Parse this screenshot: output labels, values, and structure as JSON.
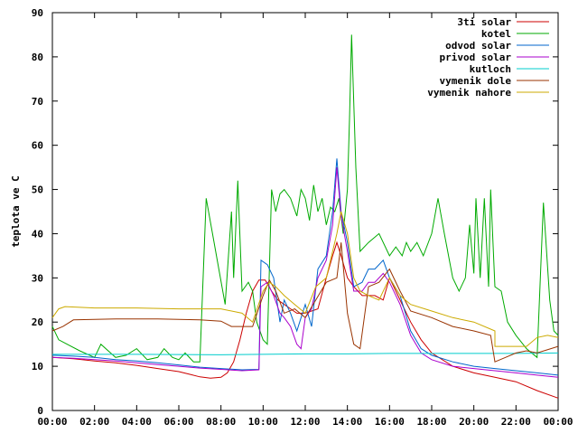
{
  "chart_data": {
    "type": "line",
    "title": "",
    "xlabel": "",
    "ylabel": "teplota ve C",
    "xlim": [
      0,
      24
    ],
    "ylim": [
      0,
      90
    ],
    "grid": false,
    "legend_position": "top-right",
    "x_ticks": [
      "00:00",
      "02:00",
      "04:00",
      "06:00",
      "08:00",
      "10:00",
      "12:00",
      "14:00",
      "16:00",
      "18:00",
      "20:00",
      "22:00",
      "00:00"
    ],
    "y_ticks": [
      "0",
      "10",
      "20",
      "30",
      "40",
      "50",
      "60",
      "70",
      "80",
      "90"
    ],
    "series": [
      {
        "name": "3ti solar",
        "color": "#cc0000",
        "points": [
          [
            0,
            12
          ],
          [
            1,
            11.7
          ],
          [
            2,
            11.2
          ],
          [
            3,
            10.8
          ],
          [
            4,
            10.2
          ],
          [
            5,
            9.5
          ],
          [
            6,
            8.8
          ],
          [
            6.5,
            8.2
          ],
          [
            7,
            7.6
          ],
          [
            7.5,
            7.3
          ],
          [
            8,
            7.5
          ],
          [
            8.3,
            8.5
          ],
          [
            8.6,
            11
          ],
          [
            8.9,
            16
          ],
          [
            9.2,
            22
          ],
          [
            9.5,
            27
          ],
          [
            9.8,
            29.5
          ],
          [
            10.1,
            29.5
          ],
          [
            10.4,
            27
          ],
          [
            10.7,
            25
          ],
          [
            11,
            24
          ],
          [
            11.3,
            23
          ],
          [
            11.6,
            22
          ],
          [
            12,
            22
          ],
          [
            12.3,
            22.5
          ],
          [
            12.6,
            23
          ],
          [
            13,
            30
          ],
          [
            13.3,
            35
          ],
          [
            13.5,
            38
          ],
          [
            13.7,
            35
          ],
          [
            14,
            30
          ],
          [
            14.3,
            28
          ],
          [
            14.7,
            26
          ],
          [
            15,
            26
          ],
          [
            15.3,
            26
          ],
          [
            15.7,
            25
          ],
          [
            16,
            30
          ],
          [
            16.3,
            27
          ],
          [
            16.7,
            23
          ],
          [
            17,
            20
          ],
          [
            17.5,
            16
          ],
          [
            18,
            13
          ],
          [
            19,
            10
          ],
          [
            20,
            8.5
          ],
          [
            21,
            7.5
          ],
          [
            22,
            6.5
          ],
          [
            23,
            4.5
          ],
          [
            24,
            2.8
          ]
        ]
      },
      {
        "name": "kotel",
        "color": "#00aa00",
        "points": [
          [
            0,
            19
          ],
          [
            0.3,
            16
          ],
          [
            0.7,
            15
          ],
          [
            1.3,
            13.5
          ],
          [
            2,
            12
          ],
          [
            2.3,
            15
          ],
          [
            3,
            12
          ],
          [
            3.5,
            12.5
          ],
          [
            4,
            14
          ],
          [
            4.5,
            11.5
          ],
          [
            5,
            12
          ],
          [
            5.3,
            14
          ],
          [
            5.7,
            12
          ],
          [
            6,
            11.5
          ],
          [
            6.3,
            13
          ],
          [
            6.7,
            11
          ],
          [
            7,
            11
          ],
          [
            7.3,
            48
          ],
          [
            7.6,
            40
          ],
          [
            7.9,
            32
          ],
          [
            8.2,
            24
          ],
          [
            8.5,
            45
          ],
          [
            8.6,
            30
          ],
          [
            8.8,
            52
          ],
          [
            9,
            27
          ],
          [
            9.3,
            29
          ],
          [
            9.5,
            27
          ],
          [
            9.7,
            20
          ],
          [
            10,
            16
          ],
          [
            10.2,
            15
          ],
          [
            10.4,
            50
          ],
          [
            10.6,
            45
          ],
          [
            10.8,
            49
          ],
          [
            11,
            50
          ],
          [
            11.3,
            48
          ],
          [
            11.6,
            44
          ],
          [
            11.8,
            50
          ],
          [
            12,
            48
          ],
          [
            12.2,
            43
          ],
          [
            12.4,
            51
          ],
          [
            12.6,
            45
          ],
          [
            12.8,
            48
          ],
          [
            13,
            42
          ],
          [
            13.2,
            46
          ],
          [
            13.4,
            45
          ],
          [
            13.6,
            48
          ],
          [
            13.8,
            40
          ],
          [
            14,
            50
          ],
          [
            14.1,
            66
          ],
          [
            14.2,
            85
          ],
          [
            14.4,
            55
          ],
          [
            14.6,
            36
          ],
          [
            15,
            38
          ],
          [
            15.5,
            40
          ],
          [
            16,
            35
          ],
          [
            16.3,
            37
          ],
          [
            16.6,
            35
          ],
          [
            16.8,
            38
          ],
          [
            17,
            36
          ],
          [
            17.3,
            38
          ],
          [
            17.6,
            35
          ],
          [
            18,
            40
          ],
          [
            18.3,
            48
          ],
          [
            18.6,
            40
          ],
          [
            19,
            30
          ],
          [
            19.3,
            27
          ],
          [
            19.6,
            30
          ],
          [
            19.8,
            42
          ],
          [
            20,
            31
          ],
          [
            20.1,
            48
          ],
          [
            20.3,
            30
          ],
          [
            20.5,
            48
          ],
          [
            20.7,
            28
          ],
          [
            20.8,
            50
          ],
          [
            21,
            28
          ],
          [
            21.3,
            27
          ],
          [
            21.6,
            20
          ],
          [
            22,
            17
          ],
          [
            22.5,
            14
          ],
          [
            23,
            12
          ],
          [
            23.3,
            47
          ],
          [
            23.6,
            25
          ],
          [
            23.8,
            18
          ],
          [
            24,
            17
          ]
        ]
      },
      {
        "name": "odvod solar",
        "color": "#0066cc",
        "points": [
          [
            0,
            12.5
          ],
          [
            1,
            12.3
          ],
          [
            2,
            12
          ],
          [
            3,
            11.5
          ],
          [
            4,
            11.2
          ],
          [
            5,
            10.8
          ],
          [
            6,
            10.3
          ],
          [
            7,
            9.8
          ],
          [
            8,
            9.5
          ],
          [
            9,
            9.2
          ],
          [
            9.8,
            9.3
          ],
          [
            9.9,
            34
          ],
          [
            10.2,
            33
          ],
          [
            10.5,
            30
          ],
          [
            10.8,
            20
          ],
          [
            11,
            25
          ],
          [
            11.3,
            22
          ],
          [
            11.6,
            18
          ],
          [
            12,
            24
          ],
          [
            12.3,
            19
          ],
          [
            12.6,
            32
          ],
          [
            13,
            35
          ],
          [
            13.3,
            45
          ],
          [
            13.5,
            57
          ],
          [
            13.7,
            45
          ],
          [
            14,
            38
          ],
          [
            14.3,
            28
          ],
          [
            14.7,
            29
          ],
          [
            15,
            32
          ],
          [
            15.3,
            32
          ],
          [
            15.7,
            34
          ],
          [
            16,
            30
          ],
          [
            16.5,
            26
          ],
          [
            17,
            18
          ],
          [
            17.5,
            14
          ],
          [
            18,
            12.5
          ],
          [
            19,
            11
          ],
          [
            20,
            10
          ],
          [
            21,
            9.5
          ],
          [
            22,
            9
          ],
          [
            23,
            8.5
          ],
          [
            24,
            8
          ]
        ]
      },
      {
        "name": "privod solar",
        "color": "#aa00cc",
        "points": [
          [
            0,
            12
          ],
          [
            1,
            11.8
          ],
          [
            2,
            11.5
          ],
          [
            3,
            11.2
          ],
          [
            4,
            10.8
          ],
          [
            5,
            10.4
          ],
          [
            6,
            10
          ],
          [
            7,
            9.6
          ],
          [
            8,
            9.3
          ],
          [
            9,
            9
          ],
          [
            9.8,
            9.2
          ],
          [
            9.9,
            28
          ],
          [
            10.2,
            29
          ],
          [
            10.5,
            26
          ],
          [
            10.8,
            22
          ],
          [
            11,
            21
          ],
          [
            11.3,
            19
          ],
          [
            11.6,
            15
          ],
          [
            11.8,
            14
          ],
          [
            12,
            21
          ],
          [
            12.3,
            23
          ],
          [
            12.6,
            30
          ],
          [
            13,
            34
          ],
          [
            13.3,
            42
          ],
          [
            13.5,
            55
          ],
          [
            13.7,
            44
          ],
          [
            14,
            36
          ],
          [
            14.3,
            27
          ],
          [
            14.7,
            27
          ],
          [
            15,
            29
          ],
          [
            15.3,
            29
          ],
          [
            15.7,
            31
          ],
          [
            16,
            29
          ],
          [
            16.5,
            24
          ],
          [
            17,
            17
          ],
          [
            17.5,
            13
          ],
          [
            18,
            11.5
          ],
          [
            19,
            10
          ],
          [
            20,
            9.5
          ],
          [
            21,
            9
          ],
          [
            22,
            8.5
          ],
          [
            23,
            8
          ],
          [
            24,
            7.5
          ]
        ]
      },
      {
        "name": "kutloch",
        "color": "#00cccc",
        "points": [
          [
            0,
            12.7
          ],
          [
            4,
            12.7
          ],
          [
            8,
            12.6
          ],
          [
            10,
            12.7
          ],
          [
            12,
            12.8
          ],
          [
            14,
            12.8
          ],
          [
            16,
            12.9
          ],
          [
            18,
            12.9
          ],
          [
            20,
            12.9
          ],
          [
            22,
            12.9
          ],
          [
            24,
            13
          ]
        ]
      },
      {
        "name": "vymenik dole",
        "color": "#993300",
        "points": [
          [
            0,
            18
          ],
          [
            0.5,
            19
          ],
          [
            1,
            20.5
          ],
          [
            3,
            20.7
          ],
          [
            5,
            20.7
          ],
          [
            7,
            20.5
          ],
          [
            8,
            20.2
          ],
          [
            8.5,
            19
          ],
          [
            9.5,
            19
          ],
          [
            10,
            26
          ],
          [
            10.3,
            29.5
          ],
          [
            10.6,
            27
          ],
          [
            11,
            22
          ],
          [
            11.5,
            23
          ],
          [
            12,
            21
          ],
          [
            12.5,
            25
          ],
          [
            13,
            29
          ],
          [
            13.5,
            30
          ],
          [
            13.7,
            38
          ],
          [
            14,
            22
          ],
          [
            14.3,
            15
          ],
          [
            14.6,
            14
          ],
          [
            15,
            28
          ],
          [
            15.5,
            29
          ],
          [
            16,
            32
          ],
          [
            16.5,
            27
          ],
          [
            17,
            22.5
          ],
          [
            18,
            21
          ],
          [
            19,
            19
          ],
          [
            20,
            18
          ],
          [
            20.8,
            17
          ],
          [
            21,
            11
          ],
          [
            21.5,
            12
          ],
          [
            22,
            13
          ],
          [
            22.5,
            13.5
          ],
          [
            23,
            13
          ],
          [
            24,
            14.5
          ]
        ]
      },
      {
        "name": "vymenik nahore",
        "color": "#ccaa00",
        "points": [
          [
            0,
            21
          ],
          [
            0.3,
            23
          ],
          [
            0.6,
            23.5
          ],
          [
            2,
            23.2
          ],
          [
            4,
            23.2
          ],
          [
            6,
            23
          ],
          [
            7,
            23
          ],
          [
            8,
            23
          ],
          [
            9,
            22
          ],
          [
            9.5,
            20
          ],
          [
            10,
            27
          ],
          [
            10.3,
            29
          ],
          [
            10.6,
            28
          ],
          [
            11,
            26
          ],
          [
            11.5,
            24
          ],
          [
            12,
            22
          ],
          [
            12.5,
            28
          ],
          [
            13,
            30
          ],
          [
            13.5,
            40
          ],
          [
            13.7,
            45
          ],
          [
            14,
            40
          ],
          [
            14.3,
            30
          ],
          [
            14.6,
            27
          ],
          [
            15,
            26
          ],
          [
            15.5,
            25
          ],
          [
            16,
            30
          ],
          [
            16.5,
            26
          ],
          [
            17,
            24
          ],
          [
            18,
            22.5
          ],
          [
            19,
            21
          ],
          [
            20,
            20
          ],
          [
            21,
            18
          ],
          [
            21,
            14.5
          ],
          [
            22,
            14.5
          ],
          [
            22.5,
            14.5
          ],
          [
            23,
            16.5
          ],
          [
            23.5,
            17
          ],
          [
            24,
            16.5
          ]
        ]
      }
    ]
  }
}
